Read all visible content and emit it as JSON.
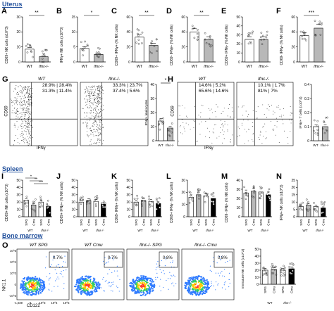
{
  "sections": {
    "uterus": "Uterus",
    "spleen": "Spleen",
    "bone_marrow": "Bone marrow"
  },
  "panel_labels": [
    "A",
    "B",
    "C",
    "D",
    "E",
    "F",
    "G",
    "H",
    "I",
    "J",
    "K",
    "L",
    "M",
    "N",
    "O"
  ],
  "colors": {
    "heading": "#1f4e9b",
    "open_bar": "#ffffff",
    "grey_bar": "#b8b8b8",
    "black_bar": "#000000"
  },
  "uterus_bars": [
    {
      "label": "A",
      "ylabel": "CD69+ NK cells (x10^3)",
      "sig": "**",
      "groups": [
        "WT",
        "Ifnε-/-"
      ],
      "values": [
        8.5,
        3.5
      ],
      "ylim": [
        0,
        30
      ],
      "ticks": [
        "0",
        "10",
        "20",
        "30"
      ]
    },
    {
      "label": "B",
      "ylabel": "IFNγ+ NK cells (x10^3)",
      "sig": "*",
      "groups": [
        "WT",
        "Ifnε-/-"
      ],
      "values": [
        4.5,
        2.5
      ],
      "ylim": [
        0,
        15
      ],
      "ticks": [
        "0",
        "5",
        "10",
        "15"
      ]
    },
    {
      "label": "C",
      "ylabel": "CD69+ IFNγ+ (% NK cells)",
      "sig": "**",
      "groups": [
        "WT",
        "Ifnε-/-"
      ],
      "values": [
        33,
        22
      ],
      "ylim": [
        0,
        60
      ],
      "ticks": [
        "0",
        "20",
        "40",
        "60"
      ]
    },
    {
      "label": "D",
      "ylabel": "CD69- IFNγ+ (% NK cells)",
      "sig": "**",
      "groups": [
        "WT",
        "Ifnε-/-"
      ],
      "values": [
        40,
        30
      ],
      "ylim": [
        0,
        60
      ],
      "ticks": [
        "0",
        "20",
        "40",
        "60"
      ]
    },
    {
      "label": "E",
      "ylabel": "CD69+ IFNγ- (% NK cells)",
      "sig": "",
      "groups": [
        "WT",
        "Ifnε-/-"
      ],
      "values": [
        25,
        25
      ],
      "ylim": [
        0,
        50
      ],
      "ticks": [
        "0",
        "10",
        "20",
        "30",
        "40",
        "50"
      ]
    },
    {
      "label": "F",
      "ylabel": "CD69- IFNγ- (% NK cells)",
      "sig": "***",
      "groups": [
        "WT",
        "Ifnε-/-"
      ],
      "values": [
        35,
        45
      ],
      "ylim": [
        0,
        60
      ],
      "ticks": [
        "0",
        "20",
        "40",
        "60"
      ]
    }
  ],
  "flow_g": {
    "axis_x": "IFNγ",
    "axis_y": "CD69",
    "plots": [
      {
        "title": "WT",
        "quadrants": [
          "28.9%",
          "28.4%",
          "31.3%",
          "11.4%"
        ]
      },
      {
        "title": "Ifnε-/-",
        "quadrants": [
          "33.3%",
          "23.7%",
          "37.4%",
          "5.6%"
        ]
      }
    ],
    "side_bar": {
      "ylabel": "IFNγ+ leukocytes",
      "sig": "*",
      "groups": [
        "WT",
        "Ifnε-/-"
      ],
      "values": [
        14,
        9
      ],
      "ylim": [
        0,
        40
      ],
      "ticks": [
        "0",
        "10",
        "20",
        "30",
        "40"
      ]
    }
  },
  "flow_h": {
    "axis_x": "IFNγ",
    "axis_y": "CD69",
    "plots": [
      {
        "title": "WT",
        "quadrants": [
          "14.6%",
          "5.2%",
          "65.6%",
          "14.6%"
        ]
      },
      {
        "title": "Ifnε-/-",
        "quadrants": [
          "10.1%",
          "1.7%",
          "81%",
          "7%"
        ]
      }
    ],
    "side_bar": {
      "ylabel": "IFNγ+ T cells (x10^3)",
      "sig": "",
      "groups": [
        "WT",
        "Ifnε-/-"
      ],
      "values": [
        0.1,
        0.1
      ],
      "ylim": [
        0,
        0.4
      ],
      "ticks": [
        "0",
        "0.1",
        "0.2",
        "0.3",
        "0.4"
      ]
    }
  },
  "spleen_bars": [
    {
      "label": "I",
      "ylabel": "CD69+ NK cells (x10^3)",
      "sigs": [
        "*",
        "**",
        "***"
      ],
      "values": [
        22,
        16,
        20,
        14
      ],
      "ylim": [
        0,
        50
      ],
      "ticks": [
        "0",
        "10",
        "20",
        "30",
        "40",
        "50"
      ]
    },
    {
      "label": "J",
      "ylabel": "CD69+ IFNγ+ (% NK cells)",
      "sigs": [],
      "values": [
        20,
        22,
        21,
        17
      ],
      "ylim": [
        0,
        50
      ],
      "ticks": [
        "0",
        "10",
        "20",
        "30",
        "40",
        "50"
      ]
    },
    {
      "label": "K",
      "ylabel": "CD69- IFNγ+ (% NK cells)",
      "sigs": [],
      "values": [
        20,
        22,
        21,
        18
      ],
      "ylim": [
        0,
        50
      ],
      "ticks": [
        "0",
        "10",
        "20",
        "30",
        "40",
        "50"
      ]
    },
    {
      "label": "L",
      "ylabel": "CD69+ IFNγ- (% NK cells)",
      "sigs": [],
      "values": [
        16,
        18,
        17,
        15
      ],
      "ylim": [
        0,
        30
      ],
      "ticks": [
        "0",
        "10",
        "20",
        "30"
      ]
    },
    {
      "label": "M",
      "ylabel": "CD69- IFNγ- (% NK cells)",
      "sigs": [],
      "values": [
        26,
        28,
        27,
        24
      ],
      "ylim": [
        0,
        40
      ],
      "ticks": [
        "0",
        "10",
        "20",
        "30",
        "40"
      ]
    },
    {
      "label": "N",
      "ylabel": "IFNγ+ NK cells (x10^3)",
      "sigs": [],
      "values": [
        7,
        8,
        7,
        6
      ],
      "ylim": [
        0,
        25
      ],
      "ticks": [
        "0",
        "5",
        "10",
        "15",
        "20",
        "25"
      ]
    }
  ],
  "spleen_x": {
    "groups": [
      "SPG",
      "Cmu",
      "SPG",
      "Cmu"
    ],
    "genotypes": [
      "WT",
      "Ifnε-/-"
    ]
  },
  "flow_o": {
    "axis_x": "CD122",
    "axis_y": "NK1.1",
    "y_ticks": [
      "10^5",
      "10^4",
      "10^3",
      "0",
      "-10^3"
    ],
    "x_ticks": [
      "-1,039",
      "0",
      "10^3",
      "10^4",
      "10^5"
    ],
    "plots": [
      {
        "title": "WT SPG",
        "gate": "0.7%"
      },
      {
        "title": "WT Cmu",
        "gate": "0.7%"
      },
      {
        "title": "Ifnε-/- SPG",
        "gate": "0.8%"
      },
      {
        "title": "Ifnε-/- Cmu",
        "gate": "0.8%"
      }
    ],
    "side_bar": {
      "ylabel": "Immature NK cells (x10^3)",
      "values": [
        20,
        21,
        20,
        22
      ],
      "ylim": [
        0,
        50
      ],
      "ticks": [
        "0",
        "10",
        "20",
        "30",
        "40",
        "50"
      ]
    }
  }
}
